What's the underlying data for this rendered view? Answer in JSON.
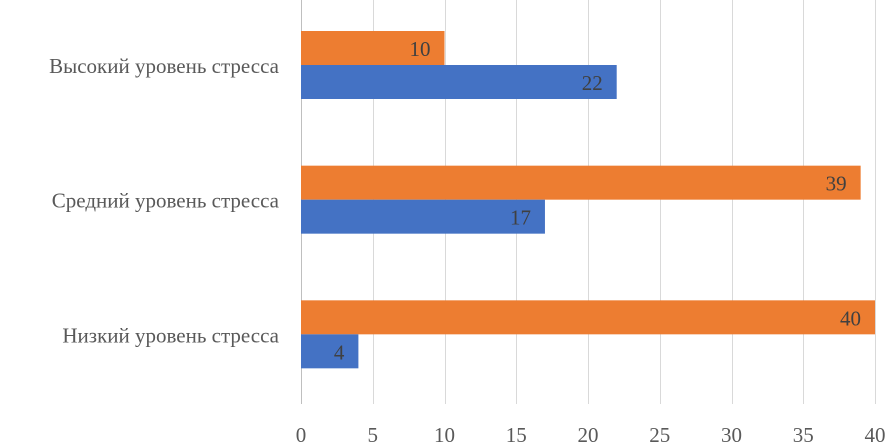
{
  "chart_data": {
    "type": "bar",
    "orientation": "horizontal",
    "categories": [
      "Высокий уровень стресса",
      "Средний уровень стресса",
      "Низкий уровень стресса"
    ],
    "series": [
      {
        "color": "#ED7D31",
        "values": [
          10,
          39,
          40
        ]
      },
      {
        "color": "#4472C4",
        "values": [
          22,
          17,
          4
        ]
      }
    ],
    "xlim": [
      0,
      40
    ],
    "xticks": [
      0,
      5,
      10,
      15,
      20,
      25,
      30,
      35,
      40
    ],
    "grid": true,
    "legend": "none",
    "data_labels": true
  }
}
